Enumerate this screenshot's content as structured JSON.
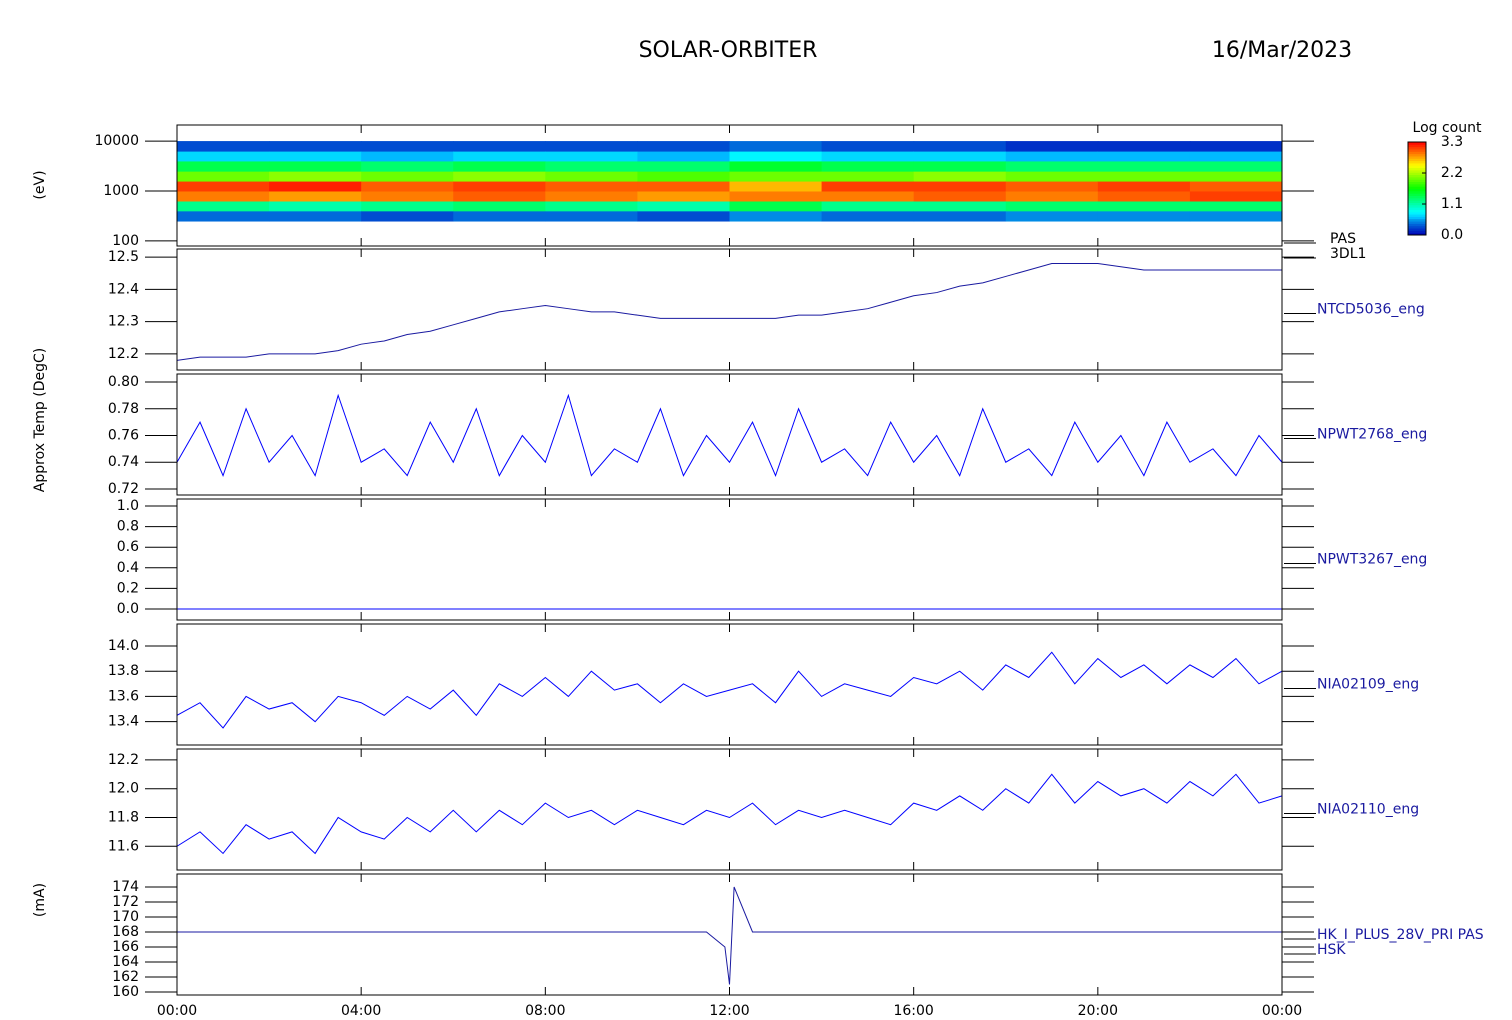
{
  "header": {
    "title": "SOLAR-ORBITER",
    "date": "16/Mar/2023"
  },
  "chart_data": [
    {
      "type": "heatmap",
      "ylabel": "(eV)",
      "right_label": [
        "PAS",
        "3DL1"
      ],
      "log_scale": true,
      "ylim": [
        79,
        21000
      ],
      "yticks": [
        100,
        1000,
        10000
      ],
      "x": [
        0,
        2,
        4,
        6,
        8,
        10,
        12,
        14,
        16,
        18,
        20,
        22,
        24
      ],
      "y": [
        250,
        400,
        630,
        1000,
        1580,
        2500,
        4000,
        6300,
        10000
      ],
      "z": [
        [
          0.4,
          1.2,
          2.9,
          3.1,
          2.0,
          1.4,
          0.7,
          0.3
        ],
        [
          0.4,
          1.1,
          2.8,
          3.2,
          2.1,
          1.4,
          0.7,
          0.3
        ],
        [
          0.3,
          1.2,
          2.9,
          3.0,
          2.0,
          1.3,
          0.6,
          0.3
        ],
        [
          0.4,
          1.3,
          3.0,
          3.1,
          2.1,
          1.4,
          0.7,
          0.3
        ],
        [
          0.4,
          1.2,
          2.9,
          3.0,
          2.0,
          1.3,
          0.7,
          0.3
        ],
        [
          0.3,
          1.1,
          2.8,
          3.0,
          1.9,
          1.3,
          0.6,
          0.3
        ],
        [
          0.5,
          1.4,
          2.9,
          2.7,
          2.0,
          1.5,
          0.8,
          0.4
        ],
        [
          0.4,
          1.2,
          2.9,
          3.1,
          2.0,
          1.4,
          0.7,
          0.3
        ],
        [
          0.4,
          1.2,
          3.0,
          3.1,
          2.1,
          1.4,
          0.7,
          0.3
        ],
        [
          0.5,
          1.3,
          2.9,
          3.0,
          2.0,
          1.3,
          0.6,
          0.2
        ],
        [
          0.5,
          1.3,
          3.0,
          3.1,
          2.0,
          1.3,
          0.6,
          0.2
        ],
        [
          0.5,
          1.3,
          3.1,
          3.0,
          2.0,
          1.3,
          0.6,
          0.2
        ]
      ],
      "zlabel": "Log count",
      "zlim": [
        0,
        3.3
      ],
      "zticks": [
        {
          "value": 0,
          "label": "0.0"
        },
        1.1,
        2.2,
        3.3
      ]
    },
    {
      "type": "line",
      "ylabel": "Approx Temp (DegC)",
      "right_label": [
        "NTCD5036_eng"
      ],
      "color": "#1a1aa0",
      "ylim": [
        12.15,
        12.525
      ],
      "yticks": [
        12.2,
        12.3,
        12.4,
        12.5
      ],
      "x": [
        0,
        0.5,
        1,
        1.5,
        2,
        2.5,
        3,
        3.5,
        4,
        4.5,
        5,
        5.5,
        6,
        6.5,
        7,
        7.5,
        8,
        8.5,
        9,
        9.5,
        10,
        10.5,
        11,
        11.5,
        12,
        12.5,
        13,
        13.5,
        14,
        14.5,
        15,
        15.5,
        16,
        16.5,
        17,
        17.5,
        18,
        18.5,
        19,
        19.5,
        20,
        20.5,
        21,
        21.5,
        22,
        22.5,
        23,
        23.5,
        24
      ],
      "values": [
        12.18,
        12.19,
        12.19,
        12.19,
        12.2,
        12.2,
        12.2,
        12.21,
        12.23,
        12.24,
        12.26,
        12.27,
        12.29,
        12.31,
        12.33,
        12.34,
        12.35,
        12.34,
        12.33,
        12.33,
        12.32,
        12.31,
        12.31,
        12.31,
        12.31,
        12.31,
        12.31,
        12.32,
        12.32,
        12.33,
        12.34,
        12.36,
        12.38,
        12.39,
        12.41,
        12.42,
        12.44,
        12.46,
        12.48,
        12.48,
        12.48,
        12.47,
        12.46,
        12.46,
        12.46,
        12.46,
        12.46,
        12.46,
        12.46
      ]
    },
    {
      "type": "line",
      "right_label": [
        "NPWT2768_eng"
      ],
      "color": "#0000ff",
      "ylim": [
        0.7155,
        0.806
      ],
      "yticks": [
        0.72,
        0.74,
        0.76,
        0.78,
        {
          "value": 0.8,
          "label": "0.80"
        }
      ],
      "x": [
        0,
        0.5,
        1,
        1.5,
        2,
        2.5,
        3,
        3.5,
        4,
        4.5,
        5,
        5.5,
        6,
        6.5,
        7,
        7.5,
        8,
        8.5,
        9,
        9.5,
        10,
        10.5,
        11,
        11.5,
        12,
        12.5,
        13,
        13.5,
        14,
        14.5,
        15,
        15.5,
        16,
        16.5,
        17,
        17.5,
        18,
        18.5,
        19,
        19.5,
        20,
        20.5,
        21,
        21.5,
        22,
        22.5,
        23,
        23.5,
        24
      ],
      "values": [
        0.74,
        0.77,
        0.73,
        0.78,
        0.74,
        0.76,
        0.73,
        0.79,
        0.74,
        0.75,
        0.73,
        0.77,
        0.74,
        0.78,
        0.73,
        0.76,
        0.74,
        0.79,
        0.73,
        0.75,
        0.74,
        0.78,
        0.73,
        0.76,
        0.74,
        0.77,
        0.73,
        0.78,
        0.74,
        0.75,
        0.73,
        0.77,
        0.74,
        0.76,
        0.73,
        0.78,
        0.74,
        0.75,
        0.73,
        0.77,
        0.74,
        0.76,
        0.73,
        0.77,
        0.74,
        0.75,
        0.73,
        0.76,
        0.74
      ]
    },
    {
      "type": "line",
      "right_label": [
        "NPWT3267_eng"
      ],
      "color": "#0000ff",
      "ylim": [
        -0.107,
        1.068
      ],
      "yticks": [
        {
          "value": 0,
          "label": "0.0"
        },
        0.2,
        0.4,
        0.6,
        0.8,
        {
          "value": 1,
          "label": "1.0"
        }
      ],
      "x": [
        0,
        0.5,
        1,
        1.5,
        2,
        2.5,
        3,
        3.5,
        4,
        4.5,
        5,
        5.5,
        6,
        6.5,
        7,
        7.5,
        8,
        8.5,
        9,
        9.5,
        10,
        10.5,
        11,
        11.5,
        12,
        12.5,
        13,
        13.5,
        14,
        14.5,
        15,
        15.5,
        16,
        16.5,
        17,
        17.5,
        18,
        18.5,
        19,
        19.5,
        20,
        20.5,
        21,
        21.5,
        22,
        22.5,
        23,
        23.5,
        24
      ],
      "values": [
        0,
        0,
        0,
        0,
        0,
        0,
        0,
        0,
        0,
        0,
        0,
        0,
        0,
        0,
        0,
        0,
        0,
        0,
        0,
        0,
        0,
        0,
        0,
        0,
        0,
        0,
        0,
        0,
        0,
        0,
        0,
        0,
        0,
        0,
        0,
        0,
        0,
        0,
        0,
        0,
        0,
        0,
        0,
        0,
        0,
        0,
        0,
        0,
        0
      ]
    },
    {
      "type": "line",
      "right_label": [
        "NIA02109_eng"
      ],
      "color": "#0000ff",
      "ylim": [
        13.215,
        14.174
      ],
      "yticks": [
        13.4,
        13.6,
        13.8,
        {
          "value": 14,
          "label": "14.0"
        }
      ],
      "x": [
        0,
        0.5,
        1,
        1.5,
        2,
        2.5,
        3,
        3.5,
        4,
        4.5,
        5,
        5.5,
        6,
        6.5,
        7,
        7.5,
        8,
        8.5,
        9,
        9.5,
        10,
        10.5,
        11,
        11.5,
        12,
        12.5,
        13,
        13.5,
        14,
        14.5,
        15,
        15.5,
        16,
        16.5,
        17,
        17.5,
        18,
        18.5,
        19,
        19.5,
        20,
        20.5,
        21,
        21.5,
        22,
        22.5,
        23,
        23.5,
        24
      ],
      "values": [
        13.45,
        13.55,
        13.35,
        13.6,
        13.5,
        13.55,
        13.4,
        13.6,
        13.55,
        13.45,
        13.6,
        13.5,
        13.65,
        13.45,
        13.7,
        13.6,
        13.75,
        13.6,
        13.8,
        13.65,
        13.7,
        13.55,
        13.7,
        13.6,
        13.65,
        13.7,
        13.55,
        13.8,
        13.6,
        13.7,
        13.65,
        13.6,
        13.75,
        13.7,
        13.8,
        13.65,
        13.85,
        13.75,
        13.95,
        13.7,
        13.9,
        13.75,
        13.85,
        13.7,
        13.85,
        13.75,
        13.9,
        13.7,
        13.8
      ]
    },
    {
      "type": "line",
      "right_label": [
        "NIA02110_eng"
      ],
      "color": "#0000ff",
      "ylim": [
        11.435,
        12.276
      ],
      "yticks": [
        11.6,
        11.8,
        {
          "value": 12,
          "label": "12.0"
        },
        12.2
      ],
      "x": [
        0,
        0.5,
        1,
        1.5,
        2,
        2.5,
        3,
        3.5,
        4,
        4.5,
        5,
        5.5,
        6,
        6.5,
        7,
        7.5,
        8,
        8.5,
        9,
        9.5,
        10,
        10.5,
        11,
        11.5,
        12,
        12.5,
        13,
        13.5,
        14,
        14.5,
        15,
        15.5,
        16,
        16.5,
        17,
        17.5,
        18,
        18.5,
        19,
        19.5,
        20,
        20.5,
        21,
        21.5,
        22,
        22.5,
        23,
        23.5,
        24
      ],
      "values": [
        11.6,
        11.7,
        11.55,
        11.75,
        11.65,
        11.7,
        11.55,
        11.8,
        11.7,
        11.65,
        11.8,
        11.7,
        11.85,
        11.7,
        11.85,
        11.75,
        11.9,
        11.8,
        11.85,
        11.75,
        11.85,
        11.8,
        11.75,
        11.85,
        11.8,
        11.9,
        11.75,
        11.85,
        11.8,
        11.85,
        11.8,
        11.75,
        11.9,
        11.85,
        11.95,
        11.85,
        12.0,
        11.9,
        12.1,
        11.9,
        12.05,
        11.95,
        12.0,
        11.9,
        12.05,
        11.95,
        12.1,
        11.9,
        11.95
      ]
    },
    {
      "type": "line",
      "ylabel": "(mA)",
      "right_label": [
        "HK_I_PLUS_28V_PRI PAS",
        "HSK"
      ],
      "color": "#1a1aa0",
      "ylim": [
        159.6,
        175.73
      ],
      "yticks": [
        160,
        162,
        164,
        166,
        168,
        170,
        172,
        174
      ],
      "x": [
        0,
        0.5,
        1,
        1.5,
        2,
        2.5,
        3,
        3.5,
        4,
        4.5,
        5,
        5.5,
        6,
        6.5,
        7,
        7.5,
        8,
        8.5,
        9,
        9.5,
        10,
        10.5,
        11,
        11.5,
        11.9,
        12,
        12.1,
        12.5,
        13,
        13.5,
        14,
        14.5,
        15,
        15.5,
        16,
        16.5,
        17,
        17.5,
        18,
        18.5,
        19,
        19.5,
        20,
        20.5,
        21,
        21.5,
        22,
        22.5,
        23,
        23.5,
        24
      ],
      "values": [
        168,
        168,
        168,
        168,
        168,
        168,
        168,
        168,
        168,
        168,
        168,
        168,
        168,
        168,
        168,
        168,
        168,
        168,
        168,
        168,
        168,
        168,
        168,
        168,
        166,
        161,
        174,
        168,
        168,
        168,
        168,
        168,
        168,
        168,
        168,
        168,
        168,
        168,
        168,
        168,
        168,
        168,
        168,
        168,
        168,
        168,
        168,
        168,
        168,
        168,
        168
      ],
      "xlim": [
        0,
        24
      ],
      "xticks": [
        {
          "value": 0,
          "label": "00:00"
        },
        {
          "value": 4,
          "label": "04:00"
        },
        {
          "value": 8,
          "label": "08:00"
        },
        {
          "value": 12,
          "label": "12:00"
        },
        {
          "value": 16,
          "label": "16:00"
        },
        {
          "value": 20,
          "label": "20:00"
        },
        {
          "value": 24,
          "label": "00:00"
        }
      ]
    }
  ]
}
